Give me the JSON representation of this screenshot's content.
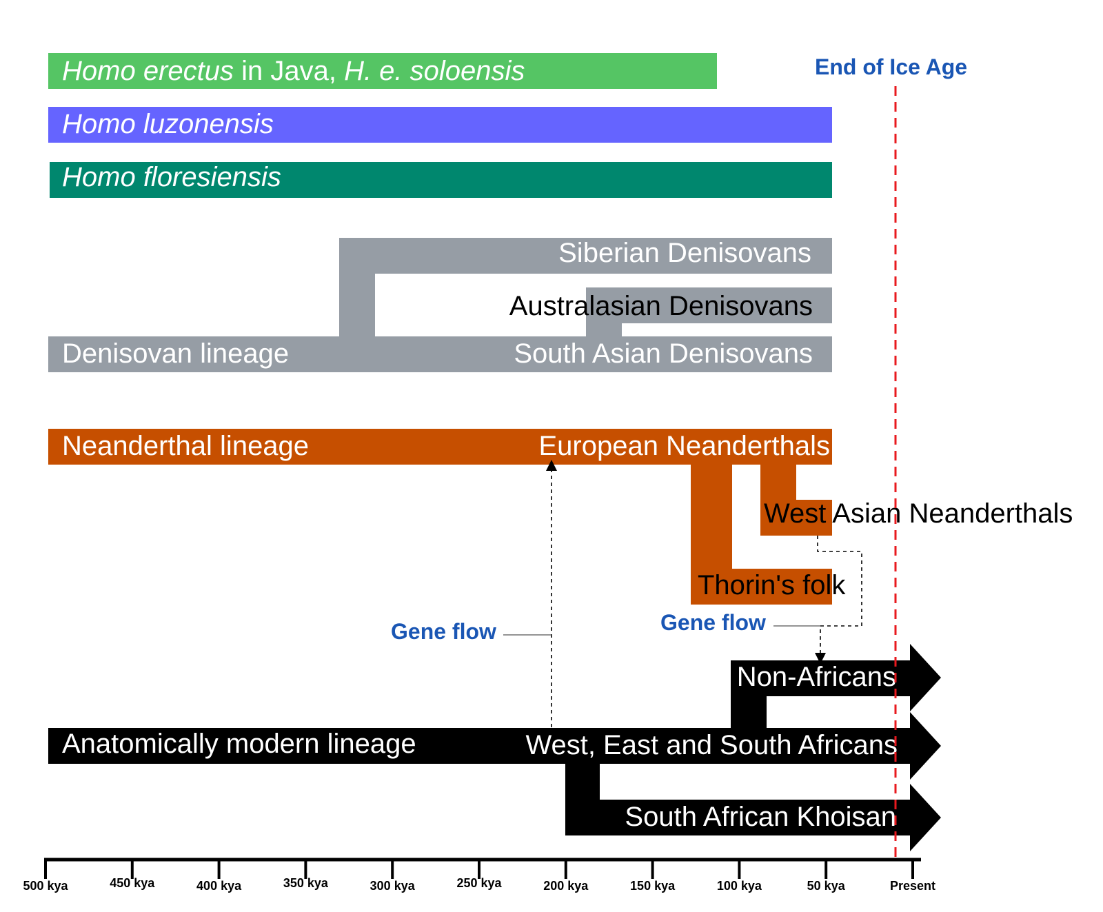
{
  "colors": {
    "erectus": "#55c564",
    "luzonensis": "#6564ff",
    "floresiensis": "#00876e",
    "denisovan": "#969da5",
    "neanderthal": "#c64f00",
    "modern": "#000000",
    "ice_age_line": "#e8191e",
    "annotation": "#1a56b4"
  },
  "species": {
    "erectus": {
      "italic_a": "Homo erectus",
      "plain": " in Java, ",
      "italic_b": "H. e. soloensis"
    },
    "luzonensis": "Homo luzonensis",
    "floresiensis": "Homo floresiensis"
  },
  "denisovans": {
    "lineage": "Denisovan lineage",
    "siberian": "Siberian Denisovans",
    "australasian": "Australasian Denisovans",
    "south_asian": "South Asian Denisovans"
  },
  "neanderthals": {
    "lineage": "Neanderthal lineage",
    "european": "European Neanderthals",
    "west_asian": "West Asian Neanderthals",
    "thorin": "Thorin's folk"
  },
  "modern": {
    "lineage": "Anatomically modern lineage",
    "non_african": "Non-Africans",
    "west_east_south": "West, East and South Africans",
    "khoisan": "South African Khoisan"
  },
  "annotations": {
    "ice_age": "End of Ice Age",
    "gene_flow_1": "Gene flow",
    "gene_flow_2": "Gene flow"
  },
  "axis": {
    "ticks": [
      "500 kya",
      "450 kya",
      "400 kya",
      "350 kya",
      "300 kya",
      "250 kya",
      "200 kya",
      "150 kya",
      "100 kya",
      "50 kya",
      "Present"
    ]
  }
}
